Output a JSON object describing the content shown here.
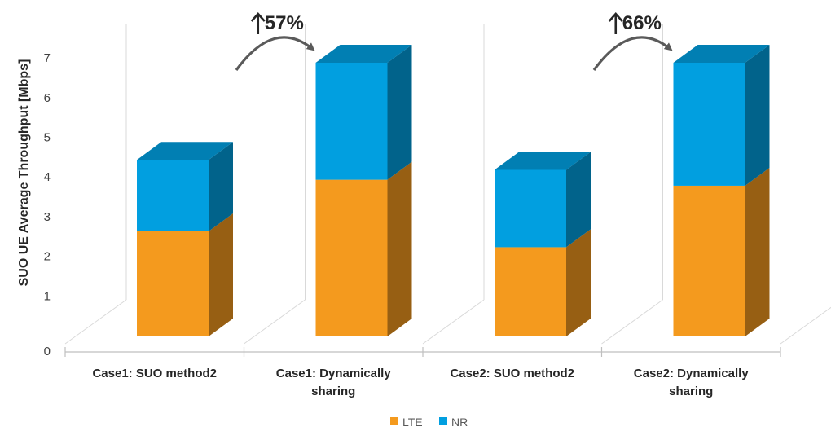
{
  "chart_data": {
    "type": "bar",
    "stacked": true,
    "three_d": true,
    "categories": [
      "Case1: SUO method2",
      "Case1: Dynamically sharing",
      "Case2: SUO method2",
      "Case2: Dynamically sharing"
    ],
    "series": [
      {
        "name": "LTE",
        "color": "#F49A1E",
        "values": [
          2.65,
          3.95,
          2.25,
          3.8
        ]
      },
      {
        "name": "NR",
        "color": "#019FE0",
        "values": [
          1.8,
          2.95,
          1.95,
          3.1
        ]
      }
    ],
    "ylabel": "SUO UE Average Throughput [Mbps]",
    "ylim": [
      0,
      7
    ],
    "yticks": [
      0,
      1,
      2,
      3,
      4,
      5,
      6,
      7
    ],
    "grid": false,
    "legend": "bottom",
    "annotations": [
      {
        "text": "57%",
        "arrow": "up",
        "from_category": 0,
        "to_category": 1
      },
      {
        "text": "66%",
        "arrow": "up",
        "from_category": 2,
        "to_category": 3
      }
    ]
  }
}
